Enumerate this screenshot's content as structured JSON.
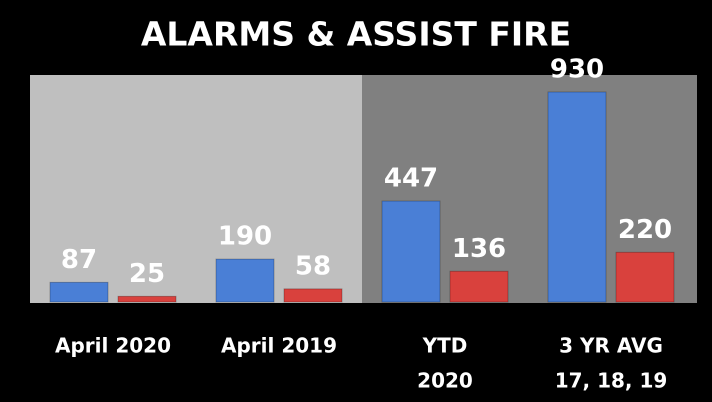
{
  "chart_data": {
    "type": "bar",
    "title": "ALARMS & ASSIST FIRE",
    "categories": [
      [
        "April 2020"
      ],
      [
        "April 2019"
      ],
      [
        "YTD",
        "2020"
      ],
      [
        "3 YR AVG",
        "17, 18, 19"
      ]
    ],
    "series": [
      {
        "color": "#4a7fd6",
        "values": [
          87,
          190,
          447,
          930
        ]
      },
      {
        "color": "#d9413d",
        "values": [
          25,
          58,
          136,
          220
        ]
      }
    ]
  }
}
